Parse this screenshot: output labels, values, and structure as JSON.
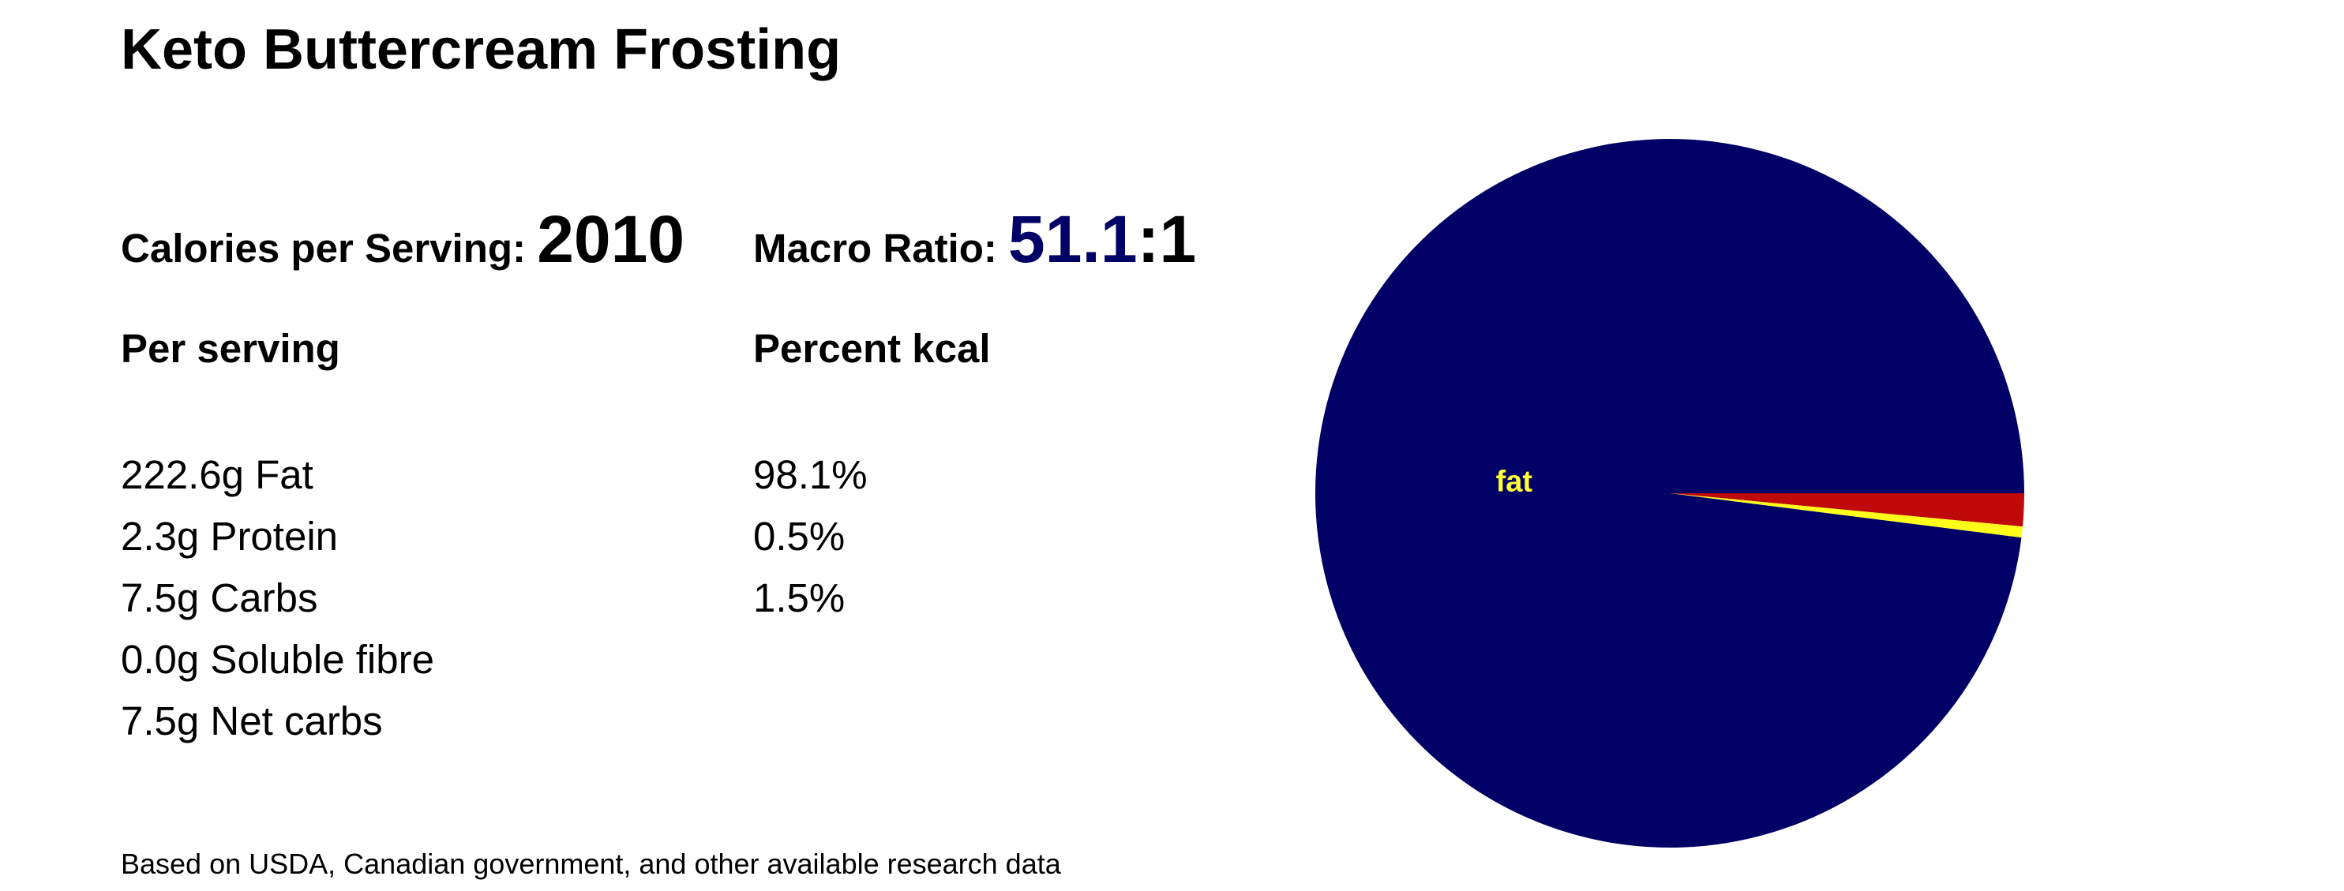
{
  "title": "Keto Buttercream Frosting",
  "calories": {
    "label": "Calories per Serving:",
    "value": "2010"
  },
  "macro_ratio": {
    "label": "Macro Ratio:",
    "value": "51.1",
    "suffix": ":1"
  },
  "per_serving": {
    "header": "Per serving",
    "rows": [
      "222.6g Fat",
      "2.3g Protein",
      "7.5g Carbs",
      "0.0g Soluble fibre",
      "7.5g Net carbs"
    ]
  },
  "percent_kcal": {
    "header": "Percent kcal",
    "rows": [
      "98.1%",
      "0.5%",
      "1.5%"
    ]
  },
  "footnote": "Based on USDA, Canadian government, and other available research data",
  "chart_data": {
    "type": "pie",
    "categories": [
      null,
      null,
      "fat"
    ],
    "values": [
      1.5,
      0.5,
      98.1
    ],
    "colors": [
      "#c00a0a",
      "#ffff1a",
      "#000066"
    ],
    "label_color": "#ffff33"
  }
}
